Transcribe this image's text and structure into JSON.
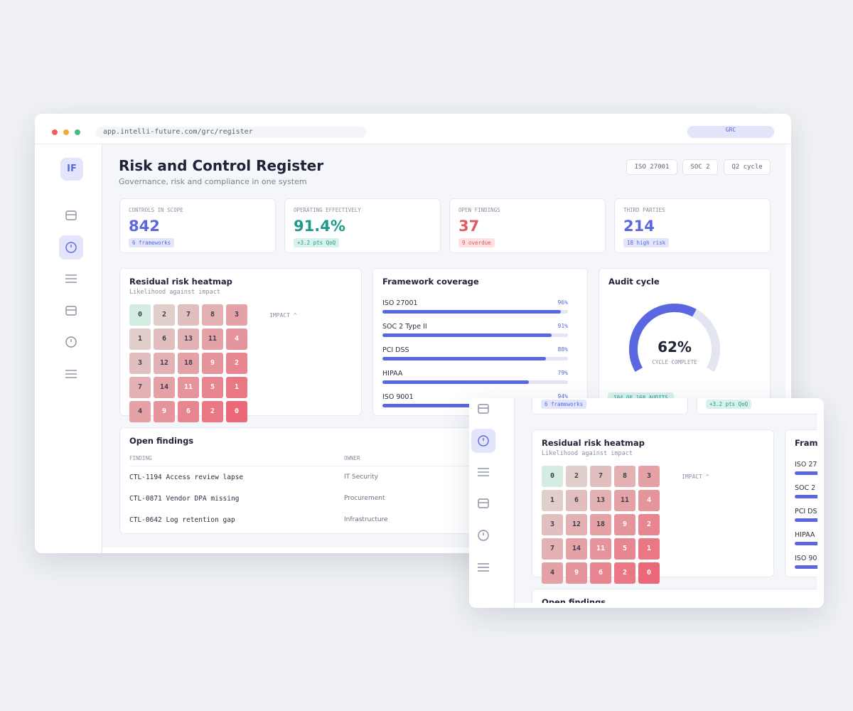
{
  "browser": {
    "url": "app.intelli-future.com/grc/register",
    "badge": "GRC"
  },
  "sidebar": {
    "logo": "IF"
  },
  "header": {
    "title": "Risk and Control Register",
    "subtitle": "Governance, risk and compliance in one system",
    "tags": [
      "ISO 27001",
      "SOC 2",
      "Q2 cycle"
    ]
  },
  "kpis": [
    {
      "label": "CONTROLS IN SCOPE",
      "value": "842",
      "badge": "6 frameworks"
    },
    {
      "label": "OPERATING EFFECTIVELY",
      "value": "91.4%",
      "badge": "+3.2 pts QoQ"
    },
    {
      "label": "OPEN FINDINGS",
      "value": "37",
      "badge": "9 overdue"
    },
    {
      "label": "THIRD PARTIES",
      "value": "214",
      "badge": "18 high risk"
    }
  ],
  "heatmap": {
    "title": "Residual risk heatmap",
    "subtitle": "Likelihood against impact",
    "axis_label": "IMPACT ^",
    "rows": [
      [
        0,
        2,
        7,
        8,
        3
      ],
      [
        1,
        6,
        13,
        11,
        4
      ],
      [
        3,
        12,
        18,
        9,
        2
      ],
      [
        7,
        14,
        11,
        5,
        1
      ],
      [
        4,
        9,
        6,
        2,
        0
      ]
    ]
  },
  "coverage": {
    "title": "Framework coverage",
    "categories": [
      "ISO 27001",
      "SOC 2 Type II",
      "PCI DSS",
      "HIPAA",
      "ISO 9001"
    ],
    "values": [
      96,
      91,
      88,
      79,
      94
    ],
    "value_labels": [
      "96%",
      "91%",
      "88%",
      "79%",
      "94%"
    ]
  },
  "audit": {
    "title": "Audit cycle",
    "value": 62,
    "value_label": "62%",
    "caption": "CYCLE COMPLETE",
    "badge": "104 OF 168 AUDITS"
  },
  "findings": {
    "title": "Open findings",
    "columns": [
      "FINDING",
      "OWNER"
    ],
    "rows": [
      [
        "CTL-1194 Access review lapse",
        "IT Security"
      ],
      [
        "CTL-0871 Vendor DPA missing",
        "Procurement"
      ],
      [
        "CTL-0642 Log retention gap",
        "Infrastructure"
      ]
    ]
  }
}
